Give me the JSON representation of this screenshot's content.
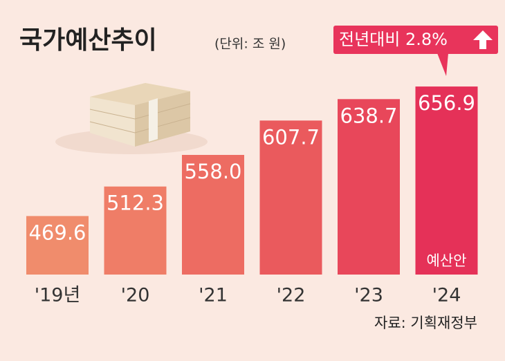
{
  "chart_data": {
    "type": "bar",
    "title": "국가예산추이",
    "subtitle": "(단위: 조 원)",
    "callout": "전년대비 2.8%",
    "bar_note": "예산안",
    "source": "자료: 기획재정부",
    "categories": [
      "'19년",
      "'20",
      "'21",
      "'22",
      "'23",
      "'24"
    ],
    "values": [
      469.6,
      512.3,
      558.0,
      607.7,
      638.7,
      656.9
    ],
    "value_labels": [
      "469.6",
      "512.3",
      "558.0",
      "607.7",
      "638.7",
      "656.9"
    ],
    "colors": [
      "#f08c6c",
      "#ef7d67",
      "#ed6c62",
      "#ea5a5d",
      "#e8475a",
      "#e53158"
    ],
    "ylim": [
      385,
      660
    ]
  }
}
